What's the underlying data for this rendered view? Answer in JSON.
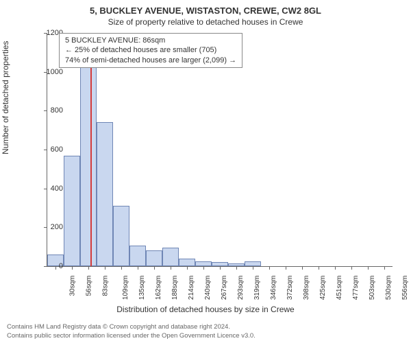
{
  "title_main": "5, BUCKLEY AVENUE, WISTASTON, CREWE, CW2 8GL",
  "title_sub": "Size of property relative to detached houses in Crewe",
  "annotation": {
    "line1": "5 BUCKLEY AVENUE: 86sqm",
    "line2": "← 25% of detached houses are smaller (705)",
    "line3": "74% of semi-detached houses are larger (2,099) →"
  },
  "chart": {
    "type": "bar",
    "x_categories": [
      "30sqm",
      "56sqm",
      "83sqm",
      "109sqm",
      "135sqm",
      "162sqm",
      "188sqm",
      "214sqm",
      "240sqm",
      "267sqm",
      "293sqm",
      "319sqm",
      "346sqm",
      "372sqm",
      "398sqm",
      "425sqm",
      "451sqm",
      "477sqm",
      "503sqm",
      "530sqm",
      "556sqm"
    ],
    "values": [
      60,
      570,
      1060,
      740,
      310,
      105,
      80,
      95,
      40,
      25,
      20,
      15,
      25,
      0,
      0,
      0,
      0,
      0,
      0,
      0,
      0
    ],
    "bar_color": "#c9d7ef",
    "bar_border_color": "#6f86b5",
    "marker_color": "#d43a3a",
    "marker_index": 2.12,
    "y_label": "Number of detached properties",
    "x_label": "Distribution of detached houses by size in Crewe",
    "ylim": [
      0,
      1200
    ],
    "ytick_step": 200,
    "background_color": "#ffffff",
    "axis_color": "#666666",
    "title_fontsize": 13,
    "label_fontsize": 12,
    "tick_fontsize": 10
  },
  "footer": {
    "line1": "Contains HM Land Registry data © Crown copyright and database right 2024.",
    "line2": "Contains public sector information licensed under the Open Government Licence v3.0."
  }
}
